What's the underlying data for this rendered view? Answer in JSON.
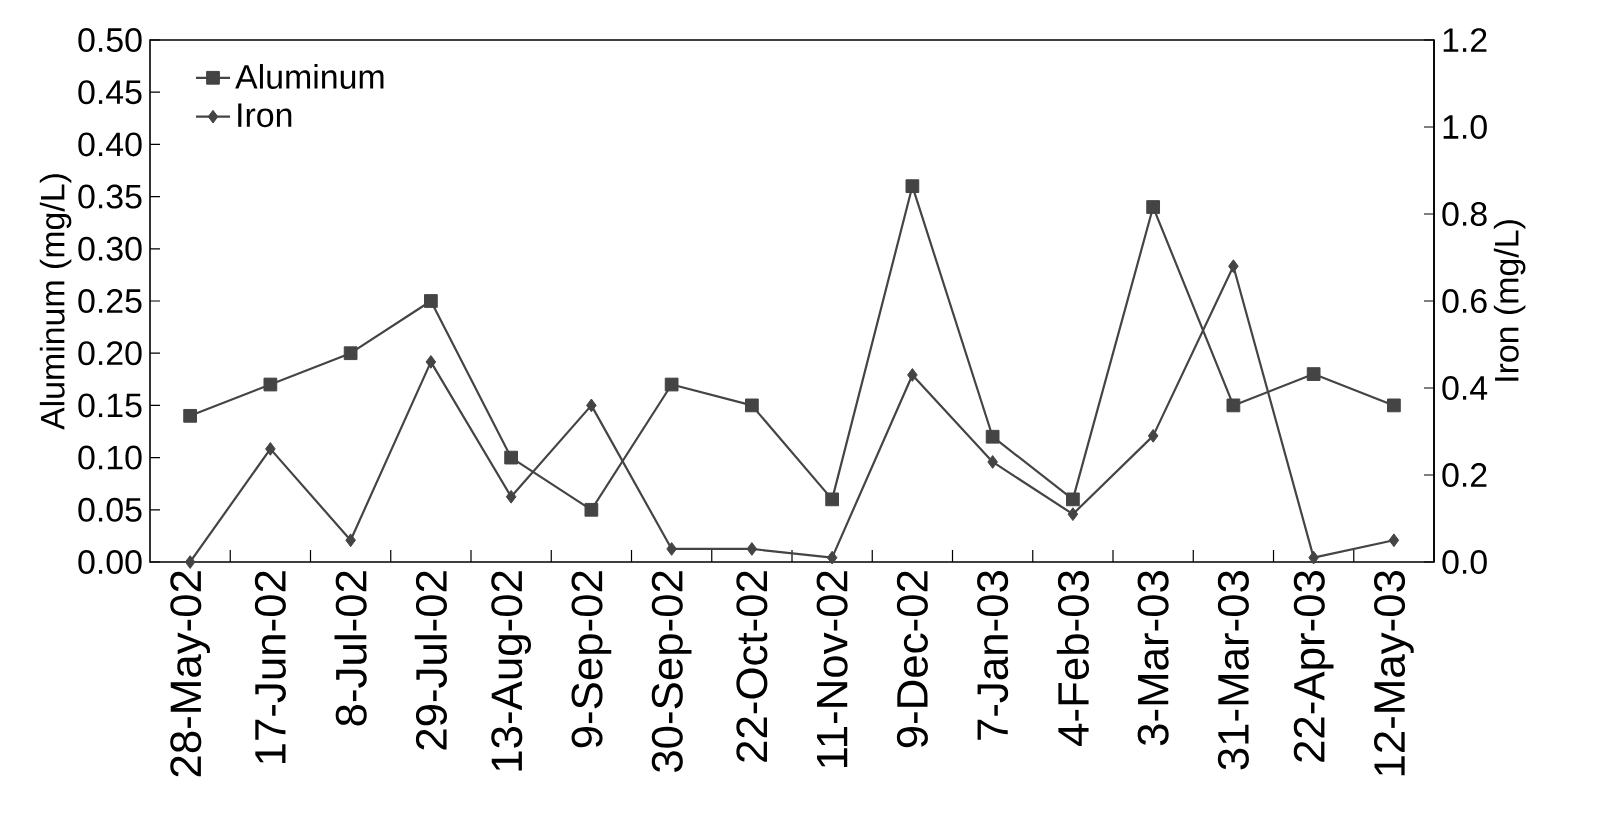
{
  "chart_data": {
    "type": "line",
    "categories": [
      "28-May-02",
      "17-Jun-02",
      "8-Jul-02",
      "29-Jul-02",
      "13-Aug-02",
      "9-Sep-02",
      "30-Sep-02",
      "22-Oct-02",
      "11-Nov-02",
      "9-Dec-02",
      "7-Jan-03",
      "4-Feb-03",
      "3-Mar-03",
      "31-Mar-03",
      "22-Apr-03",
      "12-May-03"
    ],
    "series": [
      {
        "name": "Aluminum",
        "color": "#444444",
        "marker": "square",
        "values": [
          0.14,
          0.17,
          0.2,
          0.25,
          0.1,
          0.05,
          0.17,
          0.15,
          0.06,
          0.36,
          0.12,
          0.06,
          0.34,
          0.15,
          0.18,
          0.15
        ]
      },
      {
        "name": "Iron",
        "color": "#444444",
        "marker": "diamond",
        "axis": "y2",
        "values": [
          0.0,
          0.26,
          0.05,
          0.46,
          0.15,
          0.36,
          0.03,
          0.03,
          0.01,
          0.43,
          0.23,
          0.11,
          0.29,
          0.68,
          0.01,
          0.05
        ]
      }
    ],
    "ylabel": "Aluminum (mg/L)",
    "y2label": "Iron (mg/L)",
    "ylim": [
      0,
      0.5
    ],
    "yticks": [
      {
        "value": 0,
        "label": "0.00"
      },
      {
        "value": 0.05,
        "label": "0.05"
      },
      {
        "value": 0.1,
        "label": "0.10"
      },
      {
        "value": 0.15,
        "label": "0.15"
      },
      {
        "value": 0.2,
        "label": "0.20"
      },
      {
        "value": 0.25,
        "label": "0.25"
      },
      {
        "value": 0.3,
        "label": "0.30"
      },
      {
        "value": 0.35,
        "label": "0.35"
      },
      {
        "value": 0.4,
        "label": "0.40"
      },
      {
        "value": 0.45,
        "label": "0.45"
      },
      {
        "value": 0.5,
        "label": "0.50"
      }
    ],
    "y2lim": [
      0,
      1.2
    ],
    "y2ticks": [
      {
        "value": 0,
        "label": "0.0"
      },
      {
        "value": 0.2,
        "label": "0.2"
      },
      {
        "value": 0.4,
        "label": "0.4"
      },
      {
        "value": 0.6,
        "label": "0.6"
      },
      {
        "value": 0.8,
        "label": "0.8"
      },
      {
        "value": 1,
        "label": "1.0"
      },
      {
        "value": 1.2,
        "label": "1.2"
      }
    ],
    "legend": "top left",
    "grid": false
  }
}
